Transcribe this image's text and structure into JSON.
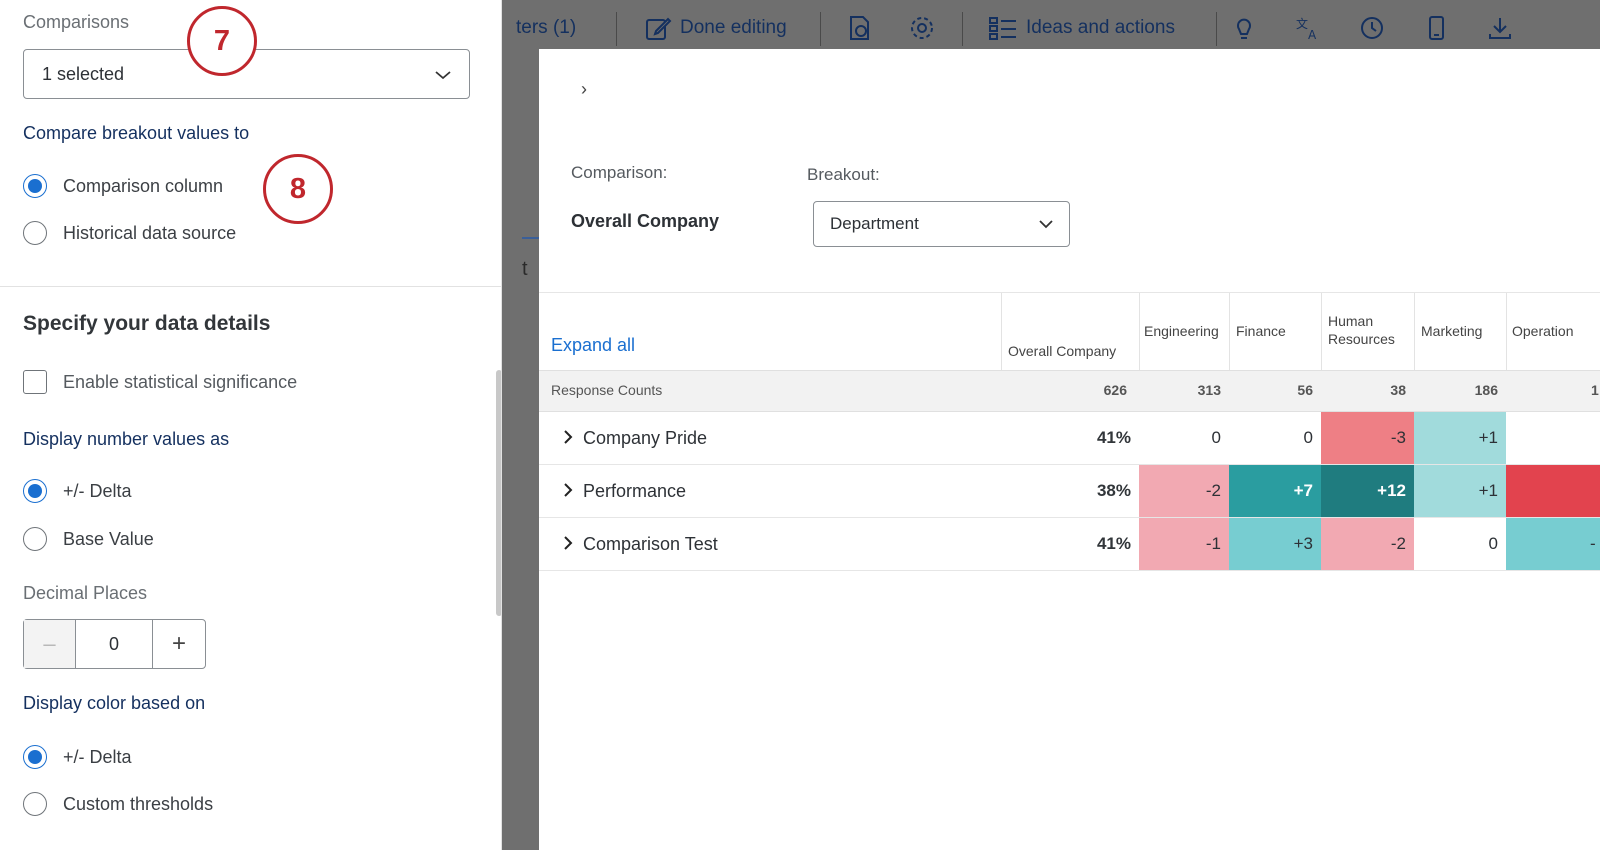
{
  "topbar": {
    "filters_label": "ters (1)",
    "done_editing_label": "Done editing",
    "ideas_label": "Ideas and actions"
  },
  "behind_text": "t",
  "modal": {
    "comparison_label": "Comparison:",
    "comparison_value": "Overall Company",
    "breakout_label": "Breakout:",
    "breakout_value": "Department"
  },
  "table": {
    "expand_all": "Expand all",
    "columns": [
      "Overall Company",
      "Engineering",
      "Finance",
      "Human Resources",
      "Marketing",
      "Operation"
    ],
    "response_counts_label": "Response Counts",
    "response_counts": [
      "626",
      "313",
      "56",
      "38",
      "186",
      "1"
    ],
    "rows": [
      {
        "label": "Company Pride",
        "overall": "41%",
        "values": [
          "0",
          "0",
          "-3",
          "+1",
          ""
        ]
      },
      {
        "label": "Performance",
        "overall": "38%",
        "values": [
          "-2",
          "+7",
          "+12",
          "+1",
          ""
        ]
      },
      {
        "label": "Comparison Test",
        "overall": "41%",
        "values": [
          "-1",
          "+3",
          "-2",
          "0",
          "-"
        ]
      }
    ]
  },
  "colors": {
    "neutral": "#ffffff",
    "light_red": "#f2a9b2",
    "mid_red": "#ee7f85",
    "strong_red": "#e2434e",
    "light_teal": "#a1dbdc",
    "mid_teal": "#77cdd1",
    "teal": "#2a9da0",
    "dark_teal": "#1f7c7f"
  },
  "cell_colors": [
    [
      "neutral",
      "neutral",
      "mid_red",
      "light_teal",
      "neutral"
    ],
    [
      "light_red",
      "teal",
      "dark_teal",
      "light_teal",
      "strong_red"
    ],
    [
      "light_red",
      "mid_teal",
      "light_red",
      "neutral",
      "mid_teal"
    ]
  ],
  "sidebar": {
    "comparisons_label": "Comparisons",
    "comparisons_value": "1 selected",
    "compare_to_label": "Compare breakout values to",
    "compare_options": [
      "Comparison column",
      "Historical data source"
    ],
    "section_title": "Specify your data details",
    "stat_sig_label": "Enable statistical significance",
    "display_number_label": "Display number values as",
    "number_options": [
      "+/- Delta",
      "Base Value"
    ],
    "decimal_label": "Decimal Places",
    "decimal_value": "0",
    "display_color_label": "Display color based on",
    "color_options": [
      "+/- Delta",
      "Custom thresholds"
    ]
  },
  "callouts": [
    "7",
    "8"
  ]
}
